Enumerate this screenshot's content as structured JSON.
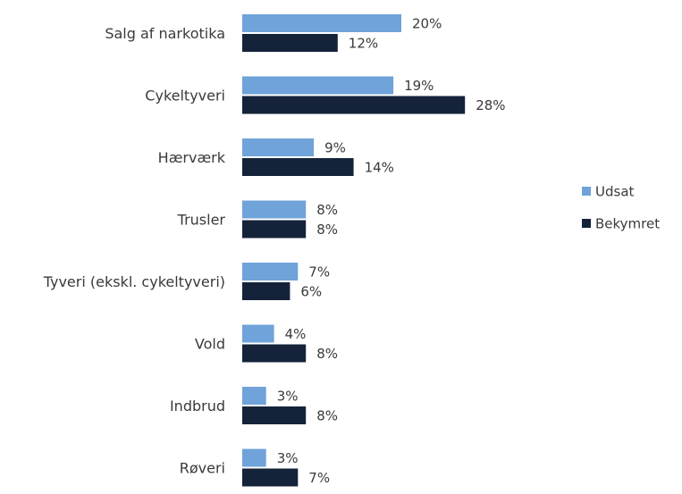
{
  "chart_data": {
    "type": "bar",
    "orientation": "horizontal",
    "categories": [
      "Salg af narkotika",
      "Cykeltyveri",
      "Hærværk",
      "Trusler",
      "Tyveri (ekskl. cykeltyveri)",
      "Vold",
      "Indbrud",
      "Røveri"
    ],
    "series": [
      {
        "name": "Udsat",
        "color": "#6fa3d9",
        "values": [
          20,
          19,
          9,
          8,
          7,
          4,
          3,
          3
        ],
        "labels": [
          "20%",
          "19%",
          "9%",
          "8%",
          "7%",
          "4%",
          "3%",
          "3%"
        ]
      },
      {
        "name": "Bekymret",
        "color": "#14233a",
        "values": [
          12,
          28,
          14,
          8,
          6,
          8,
          8,
          7
        ],
        "labels": [
          "12%",
          "28%",
          "14%",
          "8%",
          "6%",
          "8%",
          "8%",
          "7%"
        ]
      }
    ],
    "value_unit": "%",
    "xlim": [
      0,
      28
    ],
    "grid": false,
    "legend_position": "right"
  }
}
